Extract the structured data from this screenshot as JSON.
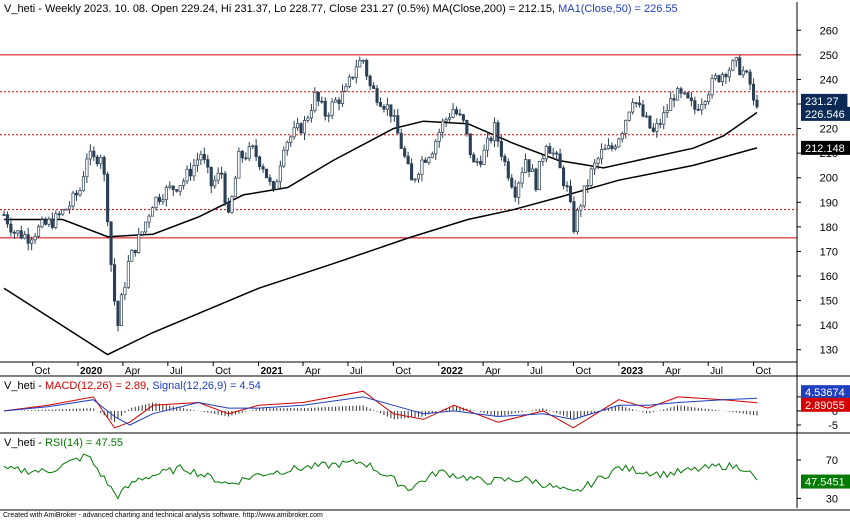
{
  "header": {
    "main_prefix": "V_heti - Weekly 2023. 10. 08. Open 229.24, Hi 231.37, Lo 228.77, Close 231.27 (0.5%) MA(Close,200) = 212.15, ",
    "main_ma50": "MA1(Close,50) = 226.55",
    "macd_prefix": "V_heti - ",
    "macd_name": "MACD(12,26) = 2.89",
    "macd_sep": ", ",
    "signal_name": "Signal(12,26,9) = 4.54",
    "rsi_prefix": "V_heti - ",
    "rsi_name": "RSI(14) = 47.55"
  },
  "footer": "Created with AmiBroker - advanced charting and technical analysis software. http://www.amibroker.com",
  "colors": {
    "candle": "#2a3f54",
    "ma": "#000000",
    "resistance": "#d40000",
    "macd": "#d40000",
    "signal": "#1f3fbf",
    "rsi": "#007a00",
    "close_badge": "#0b2a55",
    "ma200_badge": "#000000",
    "signal_badge": "#1f3fbf",
    "macd_badge": "#d40000",
    "rsi_badge": "#007a00"
  },
  "chart_data": [
    {
      "type": "candlestick",
      "title": "V_heti - Weekly",
      "ylim": [
        125,
        265
      ],
      "yticks": [
        130,
        140,
        150,
        160,
        170,
        180,
        190,
        200,
        210,
        220,
        230,
        240,
        250,
        260
      ],
      "xticks": [
        {
          "label": "Oct",
          "date": "2019-10-01",
          "bold": false
        },
        {
          "label": "2020",
          "date": "2020-01-01",
          "bold": true
        },
        {
          "label": "Apr",
          "date": "2020-04-01",
          "bold": false
        },
        {
          "label": "Jul",
          "date": "2020-07-01",
          "bold": false
        },
        {
          "label": "Oct",
          "date": "2020-10-01",
          "bold": false
        },
        {
          "label": "2021",
          "date": "2021-01-01",
          "bold": true
        },
        {
          "label": "Apr",
          "date": "2021-04-01",
          "bold": false
        },
        {
          "label": "Jul",
          "date": "2021-07-01",
          "bold": false
        },
        {
          "label": "Oct",
          "date": "2021-10-01",
          "bold": false
        },
        {
          "label": "2022",
          "date": "2022-01-01",
          "bold": true
        },
        {
          "label": "Apr",
          "date": "2022-04-01",
          "bold": false
        },
        {
          "label": "Jul",
          "date": "2022-07-01",
          "bold": false
        },
        {
          "label": "Oct",
          "date": "2022-10-01",
          "bold": false
        },
        {
          "label": "2023",
          "date": "2023-01-01",
          "bold": true
        },
        {
          "label": "Apr",
          "date": "2023-04-01",
          "bold": false
        },
        {
          "label": "Jul",
          "date": "2023-07-01",
          "bold": false
        },
        {
          "label": "Oct",
          "date": "2023-10-01",
          "bold": false
        }
      ],
      "horizontal_levels": [
        {
          "value": 250,
          "style": "solid"
        },
        {
          "value": 235,
          "style": "dotted"
        },
        {
          "value": 217.5,
          "style": "dotted"
        },
        {
          "value": 187,
          "style": "dotted"
        },
        {
          "value": 175.5,
          "style": "solid"
        }
      ],
      "price_path": [
        [
          "2019-08-04",
          185
        ],
        [
          "2019-08-25",
          178
        ],
        [
          "2019-09-22",
          176
        ],
        [
          "2019-10-20",
          180
        ],
        [
          "2019-11-17",
          183
        ],
        [
          "2019-12-15",
          189
        ],
        [
          "2020-01-05",
          195
        ],
        [
          "2020-01-19",
          209
        ],
        [
          "2020-02-02",
          207
        ],
        [
          "2020-02-16",
          210
        ],
        [
          "2020-02-23",
          200
        ],
        [
          "2020-03-01",
          185
        ],
        [
          "2020-03-08",
          165
        ],
        [
          "2020-03-15",
          150
        ],
        [
          "2020-03-22",
          140
        ],
        [
          "2020-03-29",
          150
        ],
        [
          "2020-04-12",
          165
        ],
        [
          "2020-04-26",
          172
        ],
        [
          "2020-05-10",
          178
        ],
        [
          "2020-05-31",
          190
        ],
        [
          "2020-06-21",
          194
        ],
        [
          "2020-07-12",
          196
        ],
        [
          "2020-08-02",
          199
        ],
        [
          "2020-08-23",
          205
        ],
        [
          "2020-09-06",
          210
        ],
        [
          "2020-09-27",
          197
        ],
        [
          "2020-10-18",
          202
        ],
        [
          "2020-11-01",
          183
        ],
        [
          "2020-11-22",
          208
        ],
        [
          "2020-12-20",
          211
        ],
        [
          "2021-01-10",
          205
        ],
        [
          "2021-01-31",
          193
        ],
        [
          "2021-02-21",
          214
        ],
        [
          "2021-03-14",
          218
        ],
        [
          "2021-04-04",
          222
        ],
        [
          "2021-04-25",
          233
        ],
        [
          "2021-05-16",
          226
        ],
        [
          "2021-06-06",
          231
        ],
        [
          "2021-06-27",
          235
        ],
        [
          "2021-07-18",
          246
        ],
        [
          "2021-08-01",
          248
        ],
        [
          "2021-08-15",
          237
        ],
        [
          "2021-09-05",
          232
        ],
        [
          "2021-09-26",
          227
        ],
        [
          "2021-10-17",
          213
        ],
        [
          "2021-11-07",
          198
        ],
        [
          "2021-11-28",
          207
        ],
        [
          "2021-12-19",
          212
        ],
        [
          "2022-01-09",
          222
        ],
        [
          "2022-01-30",
          228
        ],
        [
          "2022-02-20",
          222
        ],
        [
          "2022-03-13",
          205
        ],
        [
          "2022-04-03",
          210
        ],
        [
          "2022-04-24",
          220
        ],
        [
          "2022-05-15",
          206
        ],
        [
          "2022-06-05",
          195
        ],
        [
          "2022-06-26",
          208
        ],
        [
          "2022-07-17",
          198
        ],
        [
          "2022-08-07",
          215
        ],
        [
          "2022-08-28",
          207
        ],
        [
          "2022-09-18",
          195
        ],
        [
          "2022-10-02",
          180
        ],
        [
          "2022-10-16",
          190
        ],
        [
          "2022-11-06",
          202
        ],
        [
          "2022-11-27",
          210
        ],
        [
          "2022-12-18",
          212
        ],
        [
          "2023-01-08",
          220
        ],
        [
          "2023-01-29",
          233
        ],
        [
          "2023-02-19",
          225
        ],
        [
          "2023-03-12",
          218
        ],
        [
          "2023-04-02",
          225
        ],
        [
          "2023-04-23",
          234
        ],
        [
          "2023-05-14",
          232
        ],
        [
          "2023-06-04",
          228
        ],
        [
          "2023-06-25",
          234
        ],
        [
          "2023-07-16",
          240
        ],
        [
          "2023-08-06",
          244
        ],
        [
          "2023-08-27",
          246
        ],
        [
          "2023-09-10",
          243
        ],
        [
          "2023-09-24",
          238
        ],
        [
          "2023-10-01",
          230
        ],
        [
          "2023-10-08",
          231.27
        ]
      ],
      "ma200_path": [
        [
          "2019-08-04",
          155
        ],
        [
          "2020-03-01",
          128
        ],
        [
          "2020-06-01",
          137
        ],
        [
          "2021-01-01",
          155
        ],
        [
          "2021-06-01",
          165
        ],
        [
          "2021-11-01",
          175.5
        ],
        [
          "2022-03-01",
          183
        ],
        [
          "2022-06-01",
          187
        ],
        [
          "2022-09-01",
          192
        ],
        [
          "2023-01-01",
          199
        ],
        [
          "2023-06-01",
          205
        ],
        [
          "2023-10-08",
          212.15
        ]
      ],
      "ma50_path": [
        [
          "2019-08-04",
          183
        ],
        [
          "2019-12-01",
          183
        ],
        [
          "2020-03-01",
          176
        ],
        [
          "2020-06-01",
          177
        ],
        [
          "2020-09-01",
          184
        ],
        [
          "2020-12-01",
          193
        ],
        [
          "2021-03-01",
          196
        ],
        [
          "2021-06-01",
          207
        ],
        [
          "2021-08-15",
          215
        ],
        [
          "2021-10-01",
          220
        ],
        [
          "2021-12-01",
          223
        ],
        [
          "2022-03-01",
          222
        ],
        [
          "2022-06-01",
          214
        ],
        [
          "2022-09-01",
          207
        ],
        [
          "2022-12-01",
          204
        ],
        [
          "2023-03-01",
          208
        ],
        [
          "2023-06-01",
          212
        ],
        [
          "2023-08-01",
          217
        ],
        [
          "2023-10-08",
          226.55
        ]
      ],
      "badges": [
        {
          "label": "231.27",
          "value": 231.27,
          "color_key": "close_badge"
        },
        {
          "label": "226.546",
          "value": 226.546,
          "color_key": "close_badge"
        },
        {
          "label": "212.148",
          "value": 212.148,
          "color_key": "ma200_badge"
        }
      ]
    },
    {
      "type": "line",
      "title": "MACD(12,26)",
      "ylim": [
        -7.5,
        11
      ],
      "yticks": [
        -5,
        0,
        5
      ],
      "series": [
        {
          "name": "MACD(12,26)",
          "color_key": "macd",
          "values": [
            [
              "2019-08-04",
              0
            ],
            [
              "2019-11-01",
              2
            ],
            [
              "2020-02-01",
              5
            ],
            [
              "2020-03-15",
              -6
            ],
            [
              "2020-04-15",
              -4
            ],
            [
              "2020-06-01",
              2
            ],
            [
              "2020-09-01",
              3
            ],
            [
              "2020-11-01",
              -1
            ],
            [
              "2021-01-01",
              2
            ],
            [
              "2021-04-01",
              3
            ],
            [
              "2021-08-01",
              7
            ],
            [
              "2021-10-01",
              -1
            ],
            [
              "2021-12-01",
              -3
            ],
            [
              "2022-02-01",
              2
            ],
            [
              "2022-05-01",
              -4
            ],
            [
              "2022-08-01",
              0
            ],
            [
              "2022-10-01",
              -6
            ],
            [
              "2023-01-01",
              4
            ],
            [
              "2023-03-01",
              1
            ],
            [
              "2023-05-01",
              5
            ],
            [
              "2023-08-01",
              4
            ],
            [
              "2023-10-08",
              2.89
            ]
          ]
        },
        {
          "name": "Signal(12,26,9)",
          "color_key": "signal",
          "values": [
            [
              "2019-08-04",
              0
            ],
            [
              "2019-11-01",
              1.5
            ],
            [
              "2020-02-01",
              4
            ],
            [
              "2020-03-15",
              -2
            ],
            [
              "2020-04-15",
              -5
            ],
            [
              "2020-06-01",
              -1
            ],
            [
              "2020-09-01",
              3
            ],
            [
              "2020-11-01",
              1
            ],
            [
              "2021-01-01",
              1
            ],
            [
              "2021-04-01",
              2
            ],
            [
              "2021-08-01",
              5
            ],
            [
              "2021-10-01",
              2
            ],
            [
              "2021-12-01",
              -1
            ],
            [
              "2022-02-01",
              0
            ],
            [
              "2022-05-01",
              -2
            ],
            [
              "2022-08-01",
              -1
            ],
            [
              "2022-10-01",
              -3
            ],
            [
              "2023-01-01",
              2
            ],
            [
              "2023-03-01",
              2
            ],
            [
              "2023-05-01",
              3
            ],
            [
              "2023-08-01",
              4
            ],
            [
              "2023-10-08",
              4.54
            ]
          ]
        }
      ],
      "badges": [
        {
          "label": "4.53674",
          "value": 4.53674,
          "color_key": "signal_badge"
        },
        {
          "label": "2.89055",
          "value": 2.89055,
          "color_key": "macd_badge"
        }
      ]
    },
    {
      "type": "line",
      "title": "RSI(14)",
      "ylim": [
        20,
        95
      ],
      "yticks": [
        30,
        70
      ],
      "series": [
        {
          "name": "RSI(14)",
          "color_key": "rsi",
          "values": [
            [
              "2019-08-04",
              60
            ],
            [
              "2019-11-01",
              58
            ],
            [
              "2020-01-20",
              75
            ],
            [
              "2020-03-20",
              32
            ],
            [
              "2020-05-01",
              50
            ],
            [
              "2020-08-01",
              62
            ],
            [
              "2020-11-01",
              45
            ],
            [
              "2021-01-01",
              55
            ],
            [
              "2021-04-01",
              62
            ],
            [
              "2021-08-01",
              68
            ],
            [
              "2021-11-01",
              40
            ],
            [
              "2022-01-01",
              58
            ],
            [
              "2022-04-01",
              48
            ],
            [
              "2022-07-01",
              50
            ],
            [
              "2022-10-01",
              35
            ],
            [
              "2023-01-01",
              62
            ],
            [
              "2023-04-01",
              55
            ],
            [
              "2023-08-01",
              64
            ],
            [
              "2023-09-15",
              62
            ],
            [
              "2023-10-08",
              47.55
            ]
          ]
        }
      ],
      "badges": [
        {
          "label": "47.5451",
          "value": 47.5451,
          "color_key": "rsi_badge"
        }
      ]
    }
  ]
}
